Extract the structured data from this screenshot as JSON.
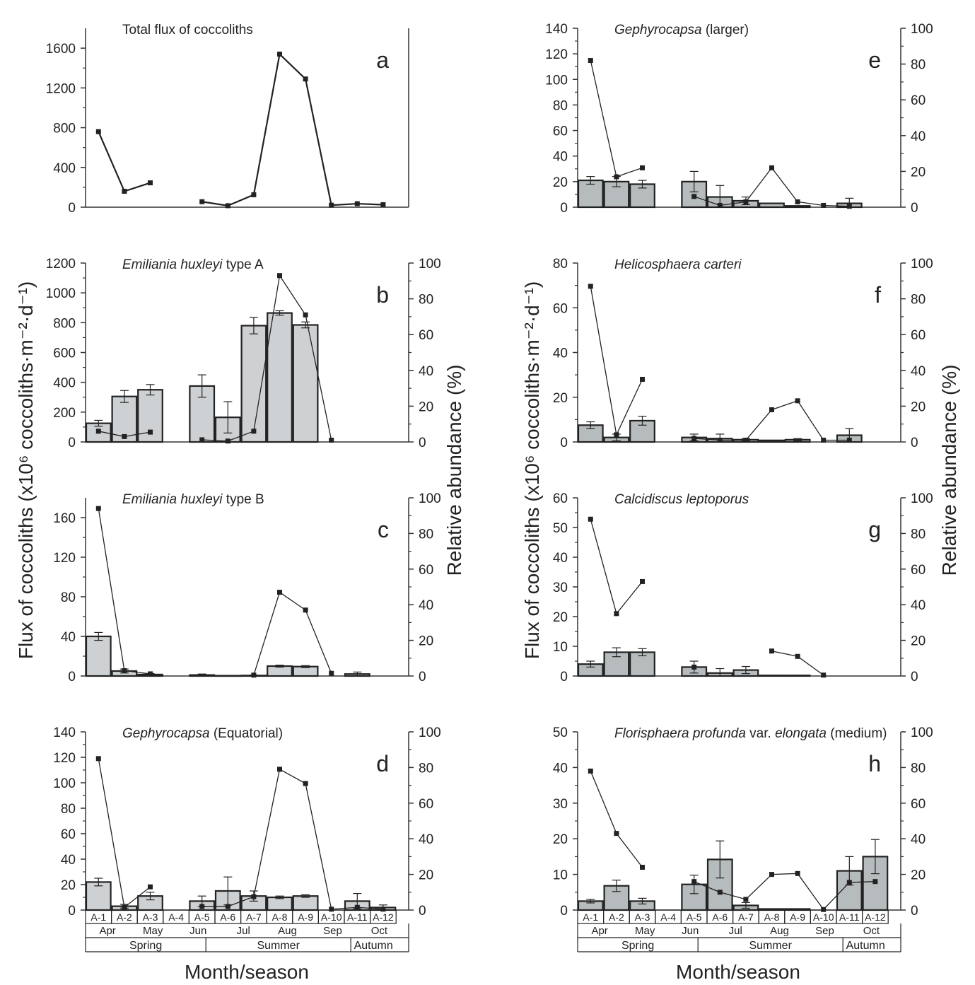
{
  "figure": {
    "left_ylabel": "Flux of coccoliths (x10⁶ coccoliths·m⁻²·d⁻¹)",
    "right_ylabel": "Relative abundance (%)",
    "xlabel": "Month/season",
    "samples": [
      "A-1",
      "A-2",
      "A-3",
      "A-4",
      "A-5",
      "A-6",
      "A-7",
      "A-8",
      "A-9",
      "A-10",
      "A-11",
      "A-12"
    ],
    "months": [
      "Apr",
      "May",
      "Jun",
      "Jul",
      "Aug",
      "Sep",
      "Oct"
    ],
    "seasons": [
      "Spring",
      "Summer",
      "Autumn"
    ]
  },
  "chart_data": [
    {
      "panel": "a",
      "type": "line",
      "title": "Total flux of coccoliths",
      "title_italic": "",
      "title_suffix": "",
      "ylim": [
        0,
        1800
      ],
      "yticks": [
        0,
        400,
        800,
        1200,
        1600
      ],
      "flux": [],
      "flux_err": [],
      "line": [
        760,
        160,
        245,
        null,
        55,
        15,
        125,
        1540,
        1290,
        20,
        35,
        25
      ],
      "rel_ylim": null,
      "rel_yticks": []
    },
    {
      "panel": "b",
      "type": "bar",
      "title": "",
      "title_italic": "Emiliania huxleyi",
      "title_suffix": " type A",
      "ylim": [
        0,
        1200
      ],
      "yticks": [
        0,
        200,
        400,
        600,
        800,
        1000,
        1200
      ],
      "flux": [
        125,
        305,
        350,
        null,
        375,
        165,
        780,
        865,
        785,
        null,
        null,
        null
      ],
      "flux_err": [
        20,
        40,
        35,
        null,
        75,
        105,
        55,
        15,
        20,
        null,
        null,
        null
      ],
      "line": [
        6,
        3,
        5.5,
        null,
        1.2,
        0.5,
        6,
        93,
        71,
        1,
        null,
        null
      ],
      "rel_ylim": [
        0,
        100
      ],
      "rel_yticks": [
        0,
        20,
        40,
        60,
        80,
        100
      ]
    },
    {
      "panel": "c",
      "type": "bar",
      "title": "",
      "title_italic": "Emiliania huxleyi",
      "title_suffix": " type B",
      "ylim": [
        0,
        180
      ],
      "yticks": [
        0,
        40,
        80,
        120,
        160
      ],
      "flux": [
        40,
        5,
        1.5,
        null,
        1,
        0.3,
        0.5,
        10,
        9.5,
        null,
        2,
        null
      ],
      "flux_err": [
        4,
        2,
        1,
        null,
        1,
        0.3,
        0.5,
        1,
        1,
        null,
        2,
        null
      ],
      "line": [
        94,
        3,
        1.2,
        null,
        null,
        null,
        0.5,
        47,
        37,
        1.5,
        null,
        null
      ],
      "rel_ylim": [
        0,
        100
      ],
      "rel_yticks": [
        0,
        20,
        40,
        60,
        80,
        100
      ]
    },
    {
      "panel": "d",
      "type": "bar",
      "title": "",
      "title_italic": "Gephyrocapsa",
      "title_suffix": " (Equatorial)",
      "ylim": [
        0,
        140
      ],
      "yticks": [
        0,
        20,
        40,
        60,
        80,
        100,
        120,
        140
      ],
      "flux": [
        22,
        3,
        11,
        null,
        7,
        15,
        11,
        10,
        11,
        null,
        7,
        2
      ],
      "flux_err": [
        3,
        1.5,
        3,
        null,
        4,
        11,
        4,
        1,
        1,
        null,
        6,
        2
      ],
      "line": [
        85,
        1.5,
        13,
        null,
        2,
        2,
        7.5,
        79,
        71,
        0.5,
        1.5,
        0.5
      ],
      "rel_ylim": [
        0,
        100
      ],
      "rel_yticks": [
        0,
        20,
        40,
        60,
        80,
        100
      ]
    },
    {
      "panel": "e",
      "type": "bar",
      "title": "",
      "title_italic": "Gephyrocapsa",
      "title_suffix": " (larger)",
      "ylim": [
        0,
        140
      ],
      "yticks": [
        0,
        20,
        40,
        60,
        80,
        100,
        120,
        140
      ],
      "flux": [
        21,
        20,
        18,
        null,
        20,
        8,
        5,
        3,
        1,
        null,
        3,
        null
      ],
      "flux_err": [
        3,
        4,
        3,
        null,
        8,
        9,
        3,
        null,
        null,
        null,
        4,
        null
      ],
      "line": [
        82,
        17,
        22,
        null,
        6,
        1,
        3,
        22,
        3,
        1,
        0.5,
        null
      ],
      "rel_ylim": [
        0,
        100
      ],
      "rel_yticks": [
        0,
        20,
        40,
        60,
        80,
        100
      ]
    },
    {
      "panel": "f",
      "type": "bar",
      "title": "",
      "title_italic": "Helicosphaera carteri",
      "title_suffix": "",
      "ylim": [
        0,
        80
      ],
      "yticks": [
        0,
        20,
        40,
        60,
        80
      ],
      "flux": [
        7.5,
        2,
        9.5,
        null,
        2,
        1.5,
        1,
        0.7,
        1,
        null,
        3,
        null
      ],
      "flux_err": [
        1.5,
        1.5,
        2,
        null,
        1.5,
        2,
        0.5,
        null,
        0.5,
        null,
        3,
        null
      ],
      "line": [
        87,
        4,
        35,
        null,
        2,
        1,
        1,
        18,
        23,
        1,
        1,
        null
      ],
      "rel_ylim": [
        0,
        100
      ],
      "rel_yticks": [
        0,
        20,
        40,
        60,
        80,
        100
      ]
    },
    {
      "panel": "g",
      "type": "bar",
      "title": "",
      "title_italic": "Calcidiscus leptoporus",
      "title_suffix": "",
      "ylim": [
        0,
        60
      ],
      "yticks": [
        0,
        10,
        20,
        30,
        40,
        50,
        60
      ],
      "flux": [
        4,
        8,
        8,
        null,
        3,
        1,
        2,
        0.2,
        0.2,
        null,
        null,
        null
      ],
      "flux_err": [
        1,
        1.5,
        1.2,
        null,
        2,
        1.5,
        1.2,
        null,
        null,
        null,
        null,
        null
      ],
      "line": [
        88,
        35,
        53,
        null,
        5,
        null,
        null,
        14,
        11,
        0.5,
        null,
        null
      ],
      "rel_ylim": [
        0,
        100
      ],
      "rel_yticks": [
        0,
        20,
        40,
        60,
        80,
        100
      ]
    },
    {
      "panel": "h",
      "type": "bar",
      "title": "",
      "title_italic": "Florisphaera profunda",
      "title_suffix": " var. ",
      "title_italic2": "elongata",
      "title_suffix2": " (medium)",
      "ylim": [
        0,
        50
      ],
      "yticks": [
        0,
        10,
        20,
        30,
        40,
        50
      ],
      "flux": [
        2.5,
        6.8,
        2.5,
        null,
        7.2,
        14.2,
        1.3,
        0.3,
        0.3,
        null,
        11,
        15
      ],
      "flux_err": [
        0.5,
        1.6,
        0.8,
        null,
        2.6,
        5.2,
        0.8,
        null,
        null,
        null,
        4,
        4.8
      ],
      "line": [
        78,
        43,
        24,
        null,
        16,
        10,
        6,
        20,
        20.5,
        0.3,
        15.5,
        16
      ],
      "rel_ylim": [
        0,
        100
      ],
      "rel_yticks": [
        0,
        20,
        40,
        60,
        80,
        100
      ]
    }
  ]
}
